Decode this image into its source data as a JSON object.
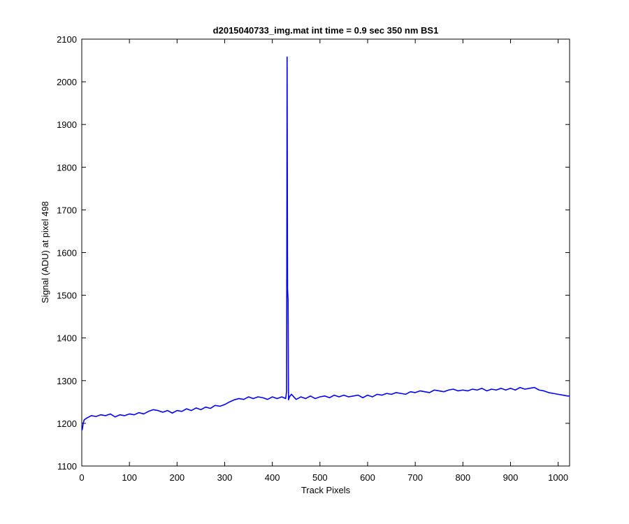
{
  "chart_data": {
    "type": "line",
    "title": "d2015040733_img.mat int time = 0.9 sec  350 nm BS1",
    "xlabel": "Track Pixels",
    "ylabel": "Signal (ADU) at pixel 498",
    "xlim": [
      0,
      1024
    ],
    "ylim": [
      1100,
      2100
    ],
    "x_ticks": [
      0,
      100,
      200,
      300,
      400,
      500,
      600,
      700,
      800,
      900,
      1000
    ],
    "y_ticks": [
      1100,
      1200,
      1300,
      1400,
      1500,
      1600,
      1700,
      1800,
      1900,
      2000,
      2100
    ],
    "grid": false,
    "series_color": "#0000ff",
    "series": [
      {
        "x": [
          0,
          1,
          3,
          5,
          10,
          20,
          30,
          40,
          50,
          60,
          70,
          80,
          90,
          100,
          110,
          120,
          130,
          140,
          150,
          160,
          170,
          180,
          190,
          200,
          210,
          220,
          230,
          240,
          250,
          260,
          270,
          280,
          290,
          300,
          310,
          320,
          330,
          340,
          350,
          360,
          370,
          380,
          390,
          400,
          410,
          420,
          428,
          430,
          431,
          432,
          433,
          434,
          436,
          440,
          450,
          460,
          470,
          480,
          490,
          500,
          510,
          520,
          530,
          540,
          550,
          560,
          570,
          580,
          590,
          600,
          610,
          620,
          630,
          640,
          650,
          660,
          670,
          680,
          690,
          700,
          710,
          720,
          730,
          740,
          750,
          760,
          770,
          780,
          790,
          800,
          810,
          820,
          830,
          840,
          850,
          860,
          870,
          880,
          890,
          900,
          910,
          920,
          930,
          940,
          950,
          960,
          970,
          980,
          990,
          1000,
          1010,
          1020,
          1024
        ],
        "y": [
          1188,
          1185,
          1200,
          1208,
          1212,
          1218,
          1216,
          1220,
          1218,
          1222,
          1215,
          1220,
          1218,
          1222,
          1220,
          1225,
          1222,
          1228,
          1232,
          1230,
          1226,
          1230,
          1224,
          1230,
          1228,
          1234,
          1230,
          1236,
          1232,
          1238,
          1235,
          1242,
          1240,
          1244,
          1250,
          1255,
          1258,
          1256,
          1262,
          1258,
          1262,
          1260,
          1256,
          1262,
          1258,
          1262,
          1258,
          1275,
          2058,
          1515,
          1490,
          1255,
          1262,
          1268,
          1256,
          1262,
          1258,
          1264,
          1258,
          1262,
          1264,
          1260,
          1266,
          1262,
          1266,
          1262,
          1264,
          1266,
          1260,
          1266,
          1262,
          1268,
          1266,
          1270,
          1268,
          1272,
          1270,
          1268,
          1274,
          1272,
          1276,
          1274,
          1272,
          1278,
          1276,
          1274,
          1278,
          1280,
          1276,
          1278,
          1276,
          1280,
          1278,
          1282,
          1276,
          1280,
          1278,
          1282,
          1278,
          1282,
          1278,
          1284,
          1280,
          1282,
          1284,
          1278,
          1276,
          1272,
          1270,
          1268,
          1266,
          1264,
          1264
        ]
      }
    ]
  }
}
